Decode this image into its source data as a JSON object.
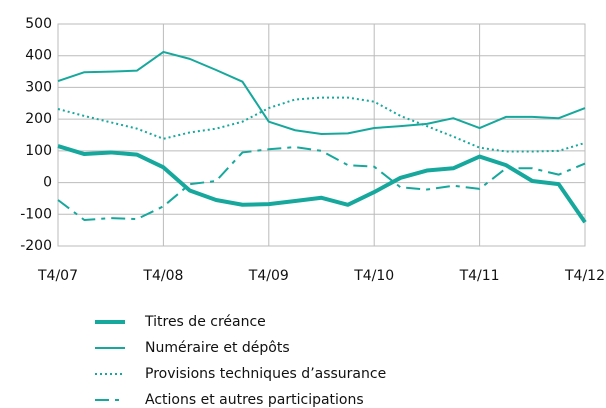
{
  "chart_data": {
    "type": "line",
    "categories": [
      "T4/07",
      null,
      null,
      null,
      "T4/08",
      null,
      null,
      null,
      "T4/09",
      null,
      null,
      null,
      "T4/10",
      null,
      null,
      null,
      "T4/11",
      null,
      null,
      null,
      "T4/12"
    ],
    "series": [
      {
        "name": "Titres de créance",
        "color": "#16a89c",
        "width": 4,
        "dash": "none",
        "values": [
          115,
          90,
          95,
          88,
          48,
          -25,
          -55,
          -70,
          -68,
          -58,
          -48,
          -70,
          -30,
          15,
          38,
          45,
          82,
          55,
          5,
          -5,
          -125
        ]
      },
      {
        "name": "Numéraire et dépôts",
        "color": "#16a89c",
        "width": 2,
        "dash": "none",
        "values": [
          320,
          348,
          350,
          353,
          412,
          390,
          355,
          318,
          192,
          165,
          153,
          155,
          172,
          178,
          185,
          203,
          172,
          207,
          207,
          203,
          235
        ]
      },
      {
        "name": "Provisions techniques d’assurance",
        "color": "#16a89c",
        "width": 2,
        "dash": "2 3",
        "values": [
          232,
          210,
          190,
          170,
          138,
          158,
          170,
          192,
          235,
          262,
          268,
          268,
          255,
          210,
          178,
          145,
          110,
          98,
          98,
          100,
          125
        ]
      },
      {
        "name": "Actions et autres participations",
        "color": "#16a89c",
        "width": 2,
        "dash": "14 6 4 6",
        "values": [
          -55,
          -118,
          -112,
          -115,
          -75,
          -5,
          5,
          95,
          105,
          112,
          100,
          55,
          50,
          -15,
          -22,
          -10,
          -20,
          45,
          45,
          25,
          60
        ]
      }
    ],
    "ylim": [
      -200,
      500
    ],
    "yticks": [
      -200,
      -100,
      0,
      100,
      200,
      300,
      400,
      500
    ],
    "grid": true
  }
}
